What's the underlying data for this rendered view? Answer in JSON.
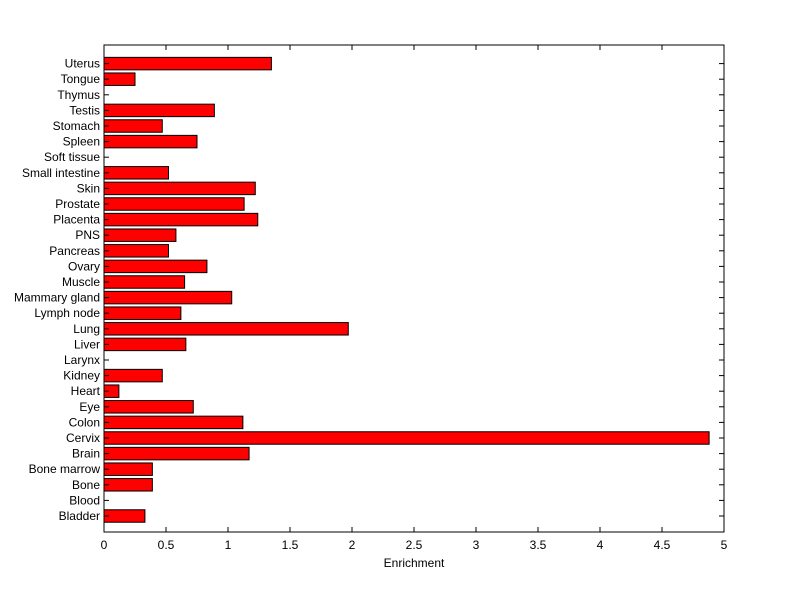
{
  "chart_data": {
    "type": "bar",
    "orientation": "horizontal",
    "title": "",
    "xlabel": "Enrichment",
    "ylabel": "",
    "xlim": [
      0,
      5
    ],
    "xticks": [
      0,
      0.5,
      1,
      1.5,
      2,
      2.5,
      3,
      3.5,
      4,
      4.5,
      5
    ],
    "xtick_labels": [
      "0",
      "0.5",
      "1",
      "1.5",
      "2",
      "2.5",
      "3",
      "3.5",
      "4",
      "4.5",
      "5"
    ],
    "grid": false,
    "legend": "none",
    "bar_color": "#ff0000",
    "bar_edge_color": "#000000",
    "categories": [
      "Bladder",
      "Blood",
      "Bone",
      "Bone marrow",
      "Brain",
      "Cervix",
      "Colon",
      "Eye",
      "Heart",
      "Kidney",
      "Larynx",
      "Liver",
      "Lung",
      "Lymph node",
      "Mammary gland",
      "Muscle",
      "Ovary",
      "Pancreas",
      "PNS",
      "Placenta",
      "Prostate",
      "Skin",
      "Small intestine",
      "Soft tissue",
      "Spleen",
      "Stomach",
      "Testis",
      "Thymus",
      "Tongue",
      "Uterus"
    ],
    "values": [
      0.33,
      0,
      0.39,
      0.39,
      1.17,
      4.88,
      1.12,
      0.72,
      0.12,
      0.47,
      0,
      0.66,
      1.97,
      0.62,
      1.03,
      0.65,
      0.83,
      0.52,
      0.58,
      1.24,
      1.13,
      1.22,
      0.52,
      0,
      0.75,
      0.47,
      0.89,
      0,
      0.25,
      1.35
    ]
  }
}
